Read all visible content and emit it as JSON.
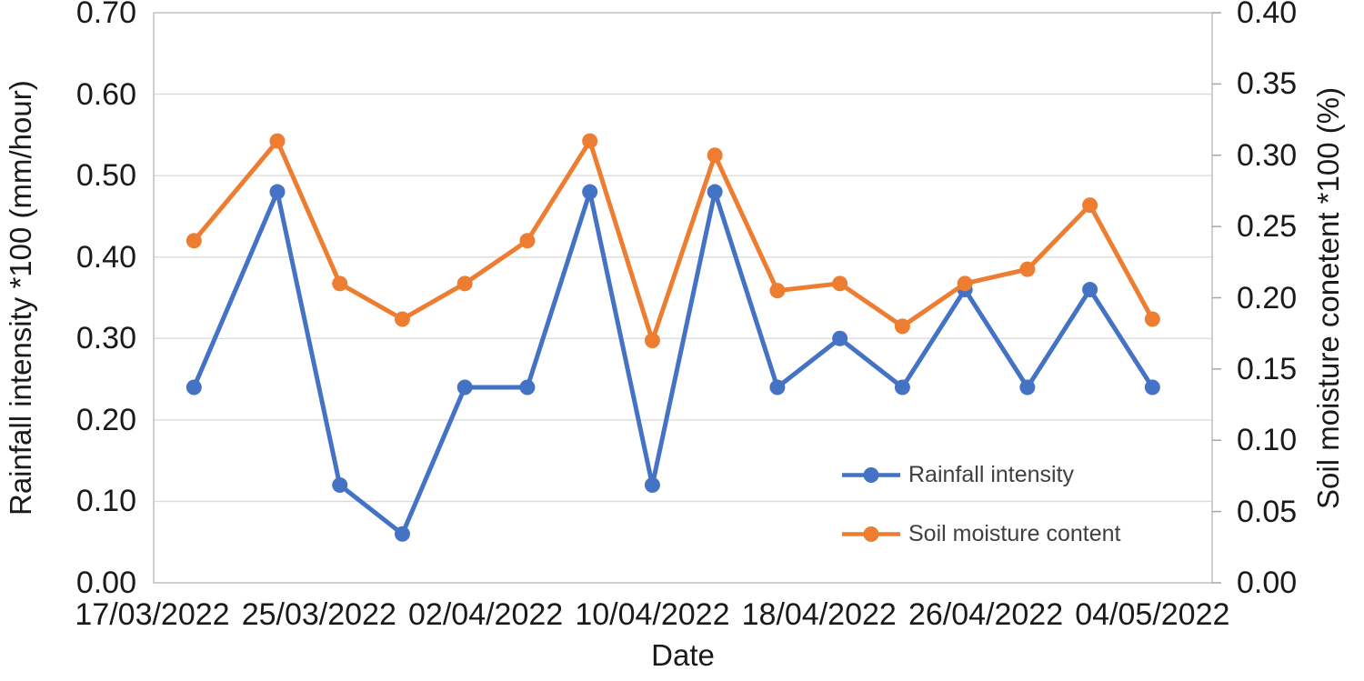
{
  "chart_data": {
    "type": "line",
    "title": "",
    "grid": "horizontal",
    "x_axis": {
      "label": "Date",
      "tick_labels": [
        "17/03/2022",
        "25/03/2022",
        "02/04/2022",
        "10/04/2022",
        "18/04/2022",
        "26/04/2022",
        "04/05/2022"
      ]
    },
    "y_axis_left": {
      "label": "Rainfall intensity  *100 (mm/hour)",
      "min": 0.0,
      "max": 0.7,
      "tick_step": 0.1,
      "tick_labels": [
        "0.00",
        "0.10",
        "0.20",
        "0.30",
        "0.40",
        "0.50",
        "0.60",
        "0.70"
      ]
    },
    "y_axis_right": {
      "label": "Soil moisture conetent *100 (%)",
      "min": 0.0,
      "max": 0.4,
      "tick_step": 0.05,
      "tick_labels": [
        "0.00",
        "0.05",
        "0.10",
        "0.15",
        "0.20",
        "0.25",
        "0.30",
        "0.35",
        "0.40"
      ]
    },
    "legend": {
      "position": "inside-bottom-right",
      "entries": [
        "Rainfall intensity",
        "Soil moisture content"
      ]
    },
    "x_dates": [
      "19/03/2022",
      "23/03/2022",
      "26/03/2022",
      "29/03/2022",
      "01/04/2022",
      "04/04/2022",
      "07/04/2022",
      "10/04/2022",
      "13/04/2022",
      "16/04/2022",
      "19/04/2022",
      "22/04/2022",
      "25/04/2022",
      "28/04/2022",
      "01/05/2022",
      "04/05/2022"
    ],
    "series": [
      {
        "name": "Rainfall intensity",
        "axis": "left",
        "color": "#4472C4",
        "values": [
          0.24,
          0.48,
          0.12,
          0.06,
          0.24,
          0.24,
          0.48,
          0.12,
          0.48,
          0.24,
          0.3,
          0.24,
          0.36,
          0.24,
          0.36,
          0.24
        ]
      },
      {
        "name": "Soil moisture content",
        "axis": "right",
        "color": "#ED7D31",
        "values": [
          0.24,
          0.31,
          0.21,
          0.185,
          0.21,
          0.24,
          0.31,
          0.17,
          0.3,
          0.205,
          0.21,
          0.18,
          0.21,
          0.22,
          0.265,
          0.185
        ]
      }
    ],
    "line_color_rainfall": "#4472C4",
    "line_color_soil_moisture": "#ED7D31",
    "gridline_color": "#D9D9D9",
    "plot_border_color": "#BFBFBF"
  }
}
